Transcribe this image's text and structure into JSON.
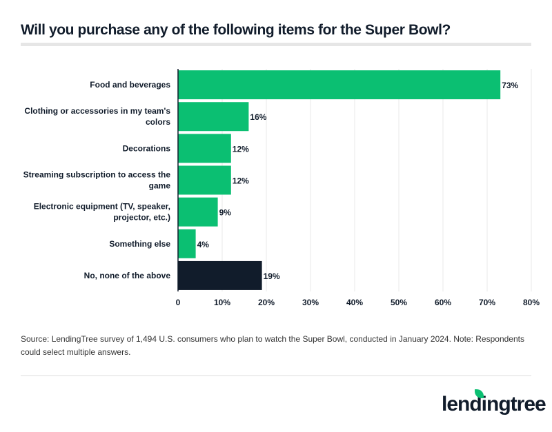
{
  "title": "Will you purchase any of the following items for the Super Bowl?",
  "chart_data": {
    "type": "bar",
    "orientation": "horizontal",
    "categories": [
      [
        "Food and beverages"
      ],
      [
        "Clothing or accessories in my team's",
        "colors"
      ],
      [
        "Decorations"
      ],
      [
        "Streaming subscription to access the",
        "game"
      ],
      [
        "Electronic equipment (TV, speaker,",
        "projector, etc.)"
      ],
      [
        "Something else"
      ],
      [
        "No, none of the above"
      ]
    ],
    "values": [
      73,
      16,
      12,
      12,
      9,
      4,
      19
    ],
    "data_labels": [
      "73%",
      "16%",
      "12%",
      "12%",
      "9%",
      "4%",
      "19%"
    ],
    "colors": [
      "#0bbf72",
      "#0bbf72",
      "#0bbf72",
      "#0bbf72",
      "#0bbf72",
      "#0bbf72",
      "#111c2b"
    ],
    "xlim": [
      0,
      80
    ],
    "xticks": [
      0,
      10,
      20,
      30,
      40,
      50,
      60,
      70,
      80
    ],
    "xtick_labels": [
      "0",
      "10%",
      "20%",
      "30%",
      "40%",
      "50%",
      "60%",
      "70%",
      "80%"
    ],
    "grid": true
  },
  "source": "Source: LendingTree survey of 1,494 U.S. consumers who plan to watch the Super Bowl, conducted in January 2024. Note: Respondents could select multiple answers.",
  "logo": "lendingtree"
}
